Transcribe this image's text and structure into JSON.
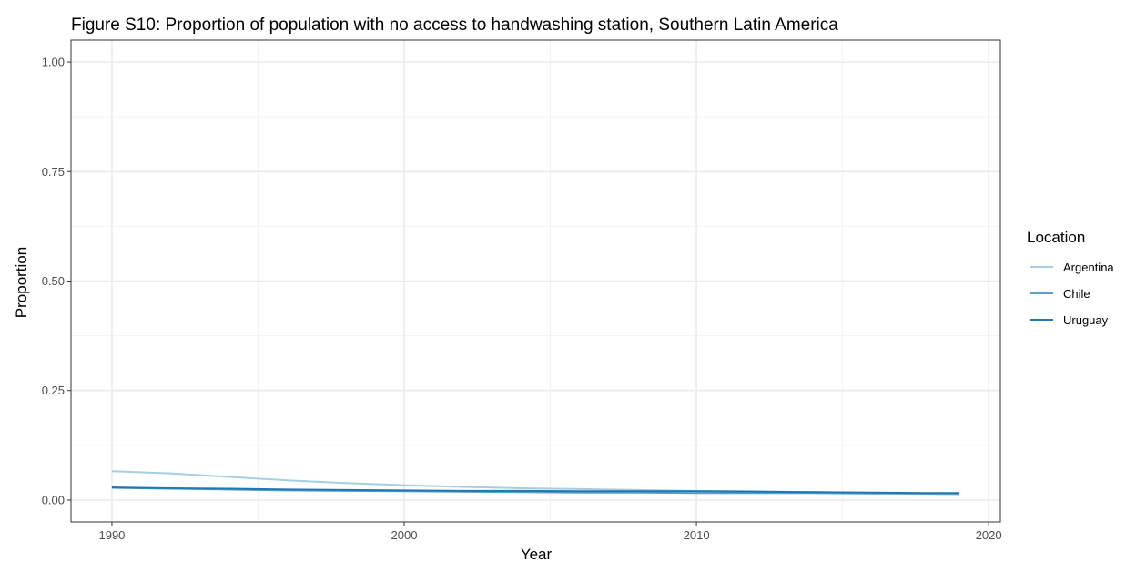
{
  "chart_data": {
    "type": "line",
    "title": "Figure S10: Proportion of population with no access to handwashing station, Southern Latin America",
    "xlabel": "Year",
    "ylabel": "Proportion",
    "xlim": [
      1988.6,
      2020.4
    ],
    "ylim": [
      -0.05,
      1.05
    ],
    "x_ticks": [
      1990,
      2000,
      2010,
      2020
    ],
    "y_ticks": [
      0.0,
      0.25,
      0.5,
      0.75,
      1.0
    ],
    "x_tick_labels": [
      "1990",
      "2000",
      "2010",
      "2020"
    ],
    "y_tick_labels": [
      "0.00",
      "0.25",
      "0.50",
      "0.75",
      "1.00"
    ],
    "grid": true,
    "legend": {
      "title": "Location",
      "placement": "right"
    },
    "series": [
      {
        "name": "Argentina",
        "color": "#a6cee3",
        "x": [
          1990,
          1992,
          1994,
          1996,
          1998,
          2000,
          2002,
          2004,
          2006,
          2008,
          2010,
          2012,
          2014,
          2016,
          2018,
          2019
        ],
        "values": [
          0.066,
          0.061,
          0.053,
          0.045,
          0.039,
          0.034,
          0.03,
          0.027,
          0.025,
          0.023,
          0.021,
          0.02,
          0.018,
          0.016,
          0.014,
          0.013
        ]
      },
      {
        "name": "Chile",
        "color": "#5b9fcb",
        "x": [
          1990,
          1992,
          1994,
          1996,
          1998,
          2000,
          2002,
          2004,
          2006,
          2008,
          2010,
          2012,
          2014,
          2016,
          2018,
          2019
        ],
        "values": [
          0.028,
          0.026,
          0.024,
          0.022,
          0.021,
          0.02,
          0.019,
          0.018,
          0.017,
          0.017,
          0.016,
          0.016,
          0.016,
          0.015,
          0.015,
          0.015
        ]
      },
      {
        "name": "Uruguay",
        "color": "#1f78b4",
        "x": [
          1990,
          1992,
          1994,
          1996,
          1998,
          2000,
          2002,
          2004,
          2006,
          2008,
          2010,
          2012,
          2014,
          2016,
          2018,
          2019
        ],
        "values": [
          0.029,
          0.027,
          0.026,
          0.024,
          0.023,
          0.022,
          0.021,
          0.021,
          0.02,
          0.02,
          0.02,
          0.019,
          0.018,
          0.017,
          0.016,
          0.016
        ]
      }
    ]
  }
}
